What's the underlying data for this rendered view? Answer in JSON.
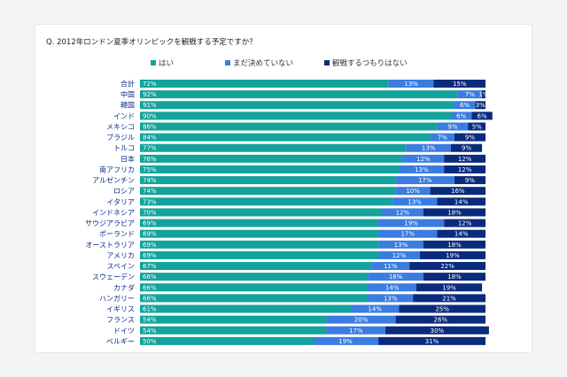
{
  "question": "Q. 2012年ロンドン夏季オリンピックを観戦する予定ですか？",
  "colors": {
    "yes": "#12a39a",
    "undecided": "#3a7cdf",
    "no": "#0a2a7c"
  },
  "chart_data": {
    "type": "bar",
    "orientation": "horizontal",
    "stacked": true,
    "legend_position": "top",
    "categories": [
      "合計",
      "中国",
      "韓国",
      "インド",
      "メキシコ",
      "ブラジル",
      "トルコ",
      "日本",
      "南アフリカ",
      "アルゼンチン",
      "ロシア",
      "イタリア",
      "インドネシア",
      "サウジアラビア",
      "ポーランド",
      "オーストラリア",
      "アメリカ",
      "スペイン",
      "スウェーデン",
      "カナダ",
      "ハンガリー",
      "イギリス",
      "フランス",
      "ドイツ",
      "ベルギー"
    ],
    "series": [
      {
        "name": "はい",
        "values": [
          72,
          92,
          91,
          90,
          86,
          84,
          77,
          76,
          75,
          74,
          74,
          73,
          70,
          69,
          69,
          69,
          69,
          67,
          66,
          66,
          66,
          61,
          54,
          54,
          50
        ]
      },
      {
        "name": "まだ決めていない",
        "values": [
          13,
          7,
          6,
          6,
          9,
          7,
          13,
          12,
          13,
          17,
          10,
          13,
          12,
          19,
          17,
          13,
          12,
          11,
          16,
          14,
          13,
          14,
          20,
          17,
          19
        ]
      },
      {
        "name": "観戦するつもりはない",
        "values": [
          15,
          1,
          3,
          6,
          5,
          9,
          9,
          12,
          12,
          9,
          16,
          14,
          18,
          12,
          14,
          18,
          19,
          22,
          18,
          19,
          21,
          25,
          26,
          30,
          31
        ]
      }
    ],
    "data_labels": [
      [
        "72%",
        "13%",
        "15%"
      ],
      [
        "92%",
        "7%",
        "1%"
      ],
      [
        "91%",
        "6%",
        "3%"
      ],
      [
        "90%",
        "6%",
        "6%"
      ],
      [
        "86%",
        "9%",
        "5%"
      ],
      [
        "84%",
        "7%",
        "9%"
      ],
      [
        "77%",
        "13%",
        "9%"
      ],
      [
        "76%",
        "12%",
        "12%"
      ],
      [
        "75%",
        "13%",
        "12%"
      ],
      [
        "74%",
        "17%",
        "9%"
      ],
      [
        "74%",
        "10%",
        "16%"
      ],
      [
        "73%",
        "13%",
        "14%"
      ],
      [
        "70%",
        "12%",
        "18%"
      ],
      [
        "69%",
        "19%",
        "12%"
      ],
      [
        "69%",
        "17%",
        "14%"
      ],
      [
        "69%",
        "13%",
        "18%"
      ],
      [
        "69%",
        "12%",
        "19%"
      ],
      [
        "67%",
        "11%",
        "22%"
      ],
      [
        "66%",
        "16%",
        "18%"
      ],
      [
        "66%",
        "14%",
        "19%"
      ],
      [
        "66%",
        "13%",
        "21%"
      ],
      [
        "61%",
        "14%",
        "25%"
      ],
      [
        "54%",
        "20%",
        "26%"
      ],
      [
        "54%",
        "17%",
        "30%"
      ],
      [
        "50%",
        "19%",
        "31%"
      ]
    ],
    "xlim": [
      0,
      100
    ]
  }
}
